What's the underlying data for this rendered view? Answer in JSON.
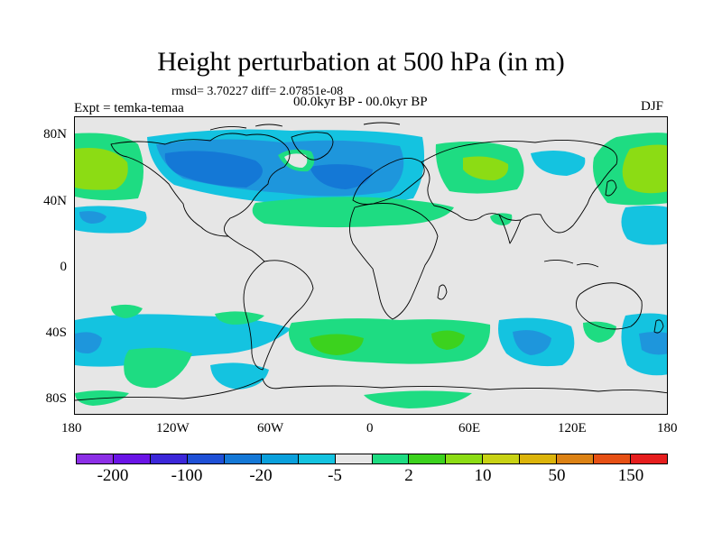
{
  "title": "Height perturbation at 500 hPa (in m)",
  "stats": "rmsd= 3.70227 diff= 2.07851e-08",
  "expt": "Expt = temka-temaa",
  "period": "00.0kyr BP - 00.0kyr BP",
  "season": "DJF",
  "axes": {
    "x_ticks": [
      "180",
      "120W",
      "60W",
      "0",
      "60E",
      "120E",
      "180"
    ],
    "y_ticks": [
      "80N",
      "40N",
      "0",
      "40S",
      "80S"
    ]
  },
  "colorbar": {
    "colors": [
      "#8c2fe6",
      "#6a14e6",
      "#3c27d9",
      "#1f50d6",
      "#1478d6",
      "#0aa0dc",
      "#14c3e0",
      "#e6e6e6",
      "#1edc82",
      "#3cd21e",
      "#8cdc14",
      "#c8d214",
      "#dcb40a",
      "#dc8214",
      "#e65014",
      "#e61e1e"
    ],
    "labels": [
      "-200",
      "-100",
      "-20",
      "-5",
      "2",
      "10",
      "50",
      "150"
    ]
  },
  "legend_colors": {
    "land_bg": "#e6e6e6",
    "blue_mid": "#1478d6",
    "blue_light": "#14c3e0",
    "green": "#1edc82",
    "green_dark": "#3cd21e",
    "yellowgreen": "#8cdc14"
  }
}
